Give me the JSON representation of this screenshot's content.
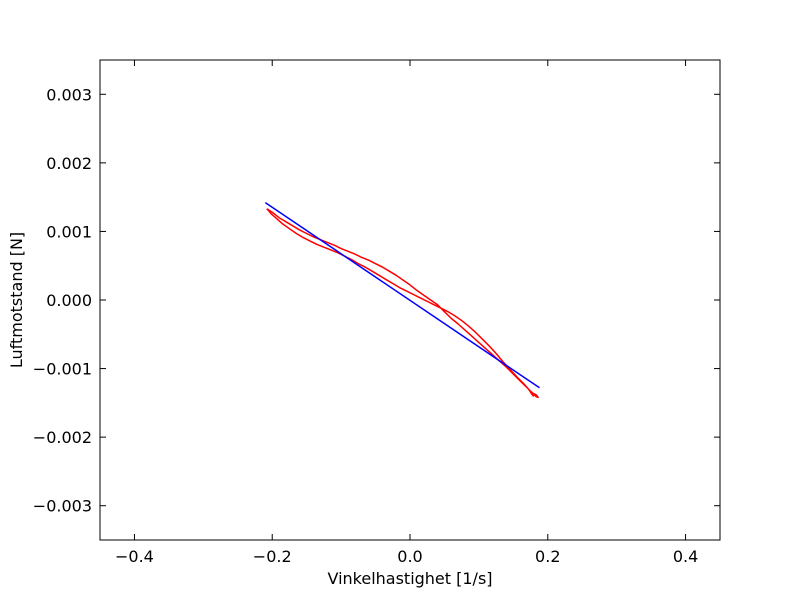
{
  "chart_data": {
    "type": "line",
    "title": "",
    "xlabel": "Vinkelhastighet [1/s]",
    "ylabel": "Luftmotstand [N]",
    "xlim": [
      -0.45,
      0.45
    ],
    "ylim": [
      -0.0035,
      0.0035
    ],
    "x_ticks": [
      -0.4,
      -0.2,
      0.0,
      0.2,
      0.4
    ],
    "x_tick_labels": [
      "−0.4",
      "−0.2",
      "0.0",
      "0.2",
      "0.4"
    ],
    "y_ticks": [
      -0.003,
      -0.002,
      -0.001,
      0.0,
      0.001,
      0.002,
      0.003
    ],
    "y_tick_labels": [
      "−0.003",
      "−0.002",
      "−0.001",
      "0.000",
      "0.001",
      "0.002",
      "0.003"
    ],
    "grid": false,
    "legend": "none",
    "series": [
      {
        "color": "#ff0000",
        "points": [
          [
            -0.207,
            0.00133
          ],
          [
            -0.205,
            0.00131
          ],
          [
            -0.2,
            0.00128
          ],
          [
            -0.195,
            0.00124
          ],
          [
            -0.19,
            0.0012
          ],
          [
            -0.185,
            0.00117
          ],
          [
            -0.18,
            0.00114
          ],
          [
            -0.17,
            0.00108
          ],
          [
            -0.16,
            0.00102
          ],
          [
            -0.15,
            0.00097
          ],
          [
            -0.14,
            0.00092
          ],
          [
            -0.13,
            0.00088
          ],
          [
            -0.12,
            0.00084
          ],
          [
            -0.11,
            0.0008
          ],
          [
            -0.1,
            0.00075
          ],
          [
            -0.09,
            0.00071
          ],
          [
            -0.08,
            0.00067
          ],
          [
            -0.07,
            0.00062
          ],
          [
            -0.06,
            0.00058
          ],
          [
            -0.05,
            0.00053
          ],
          [
            -0.04,
            0.00048
          ],
          [
            -0.03,
            0.00042
          ],
          [
            -0.02,
            0.00036
          ],
          [
            -0.01,
            0.00029
          ],
          [
            0.0,
            0.00022
          ],
          [
            0.01,
            0.00014
          ],
          [
            0.02,
            7e-05
          ],
          [
            0.03,
            0.0
          ],
          [
            0.04,
            -7e-05
          ],
          [
            0.05,
            -0.00017
          ],
          [
            0.06,
            -0.00027
          ],
          [
            0.07,
            -0.00035
          ],
          [
            0.08,
            -0.00044
          ],
          [
            0.09,
            -0.00053
          ],
          [
            0.1,
            -0.00062
          ],
          [
            0.11,
            -0.00071
          ],
          [
            0.12,
            -0.0008
          ],
          [
            0.13,
            -0.00089
          ],
          [
            0.14,
            -0.00098
          ],
          [
            0.15,
            -0.00108
          ],
          [
            0.16,
            -0.00118
          ],
          [
            0.17,
            -0.00128
          ],
          [
            0.175,
            -0.00133
          ],
          [
            0.18,
            -0.00137
          ],
          [
            0.183,
            -0.00141
          ],
          [
            0.186,
            -0.00142
          ],
          [
            0.184,
            -0.00139
          ],
          [
            0.181,
            -0.00137
          ],
          [
            0.179,
            -0.0014
          ],
          [
            0.176,
            -0.00136
          ],
          [
            0.172,
            -0.0013
          ],
          [
            0.165,
            -0.00122
          ],
          [
            0.155,
            -0.00112
          ],
          [
            0.145,
            -0.00101
          ],
          [
            0.135,
            -0.0009
          ],
          [
            0.125,
            -0.00078
          ],
          [
            0.115,
            -0.00067
          ],
          [
            0.105,
            -0.00057
          ],
          [
            0.095,
            -0.00047
          ],
          [
            0.085,
            -0.00038
          ],
          [
            0.075,
            -0.0003
          ],
          [
            0.065,
            -0.00023
          ],
          [
            0.055,
            -0.00017
          ],
          [
            0.045,
            -0.00012
          ],
          [
            0.035,
            -7e-05
          ],
          [
            0.025,
            -2e-05
          ],
          [
            0.015,
            3e-05
          ],
          [
            0.005,
            8e-05
          ],
          [
            -0.005,
            0.00013
          ],
          [
            -0.015,
            0.00018
          ],
          [
            -0.025,
            0.00024
          ],
          [
            -0.035,
            0.0003
          ],
          [
            -0.045,
            0.00036
          ],
          [
            -0.055,
            0.00042
          ],
          [
            -0.065,
            0.00048
          ],
          [
            -0.075,
            0.00053
          ],
          [
            -0.085,
            0.00059
          ],
          [
            -0.095,
            0.00064
          ],
          [
            -0.105,
            0.00069
          ],
          [
            -0.115,
            0.00073
          ],
          [
            -0.125,
            0.00077
          ],
          [
            -0.135,
            0.00081
          ],
          [
            -0.145,
            0.00086
          ],
          [
            -0.155,
            0.00091
          ],
          [
            -0.165,
            0.00097
          ],
          [
            -0.175,
            0.00104
          ],
          [
            -0.185,
            0.00111
          ],
          [
            -0.195,
            0.0012
          ],
          [
            -0.202,
            0.00126
          ],
          [
            -0.205,
            0.0013
          ],
          [
            -0.208,
            0.00133
          ]
        ]
      },
      {
        "color": "#0000ff",
        "points": [
          [
            -0.21,
            0.00142
          ],
          [
            0.188,
            -0.00128
          ]
        ]
      }
    ]
  }
}
